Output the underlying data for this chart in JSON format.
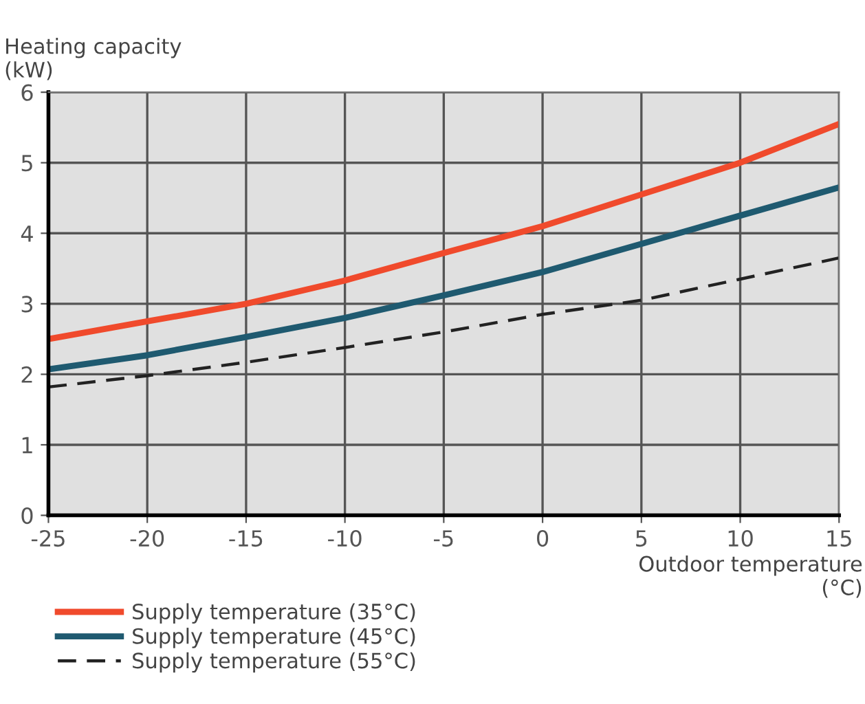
{
  "chart_data": {
    "type": "line",
    "xlabel": "Outdoor temperature\n(°C)",
    "ylabel": "Heating capacity\n(kW)",
    "x": [
      -25,
      -20,
      -15,
      -10,
      -5,
      0,
      5,
      10,
      15
    ],
    "series": [
      {
        "name": "Supply temperature (35°C)",
        "color": "#f04a2c",
        "line_style": "solid",
        "values": [
          2.5,
          2.75,
          3.0,
          3.33,
          3.72,
          4.1,
          4.55,
          5.0,
          5.55
        ]
      },
      {
        "name": "Supply temperature (45°C)",
        "color": "#1f5a70",
        "line_style": "solid",
        "values": [
          2.07,
          2.27,
          2.53,
          2.8,
          3.12,
          3.45,
          3.85,
          4.25,
          4.65
        ]
      },
      {
        "name": "Supply temperature (55°C)",
        "color": "#222222",
        "line_style": "dashed",
        "values": [
          1.82,
          1.98,
          2.17,
          2.38,
          2.6,
          2.85,
          3.05,
          3.35,
          3.65
        ]
      }
    ],
    "xlim": [
      -25,
      15
    ],
    "ylim": [
      0,
      6
    ],
    "xticks": [
      -25,
      -20,
      -15,
      -10,
      -5,
      0,
      5,
      10,
      15
    ],
    "yticks": [
      0,
      1,
      2,
      3,
      4,
      5,
      6
    ],
    "grid": true,
    "legend": "bottom left",
    "marker": "none"
  }
}
